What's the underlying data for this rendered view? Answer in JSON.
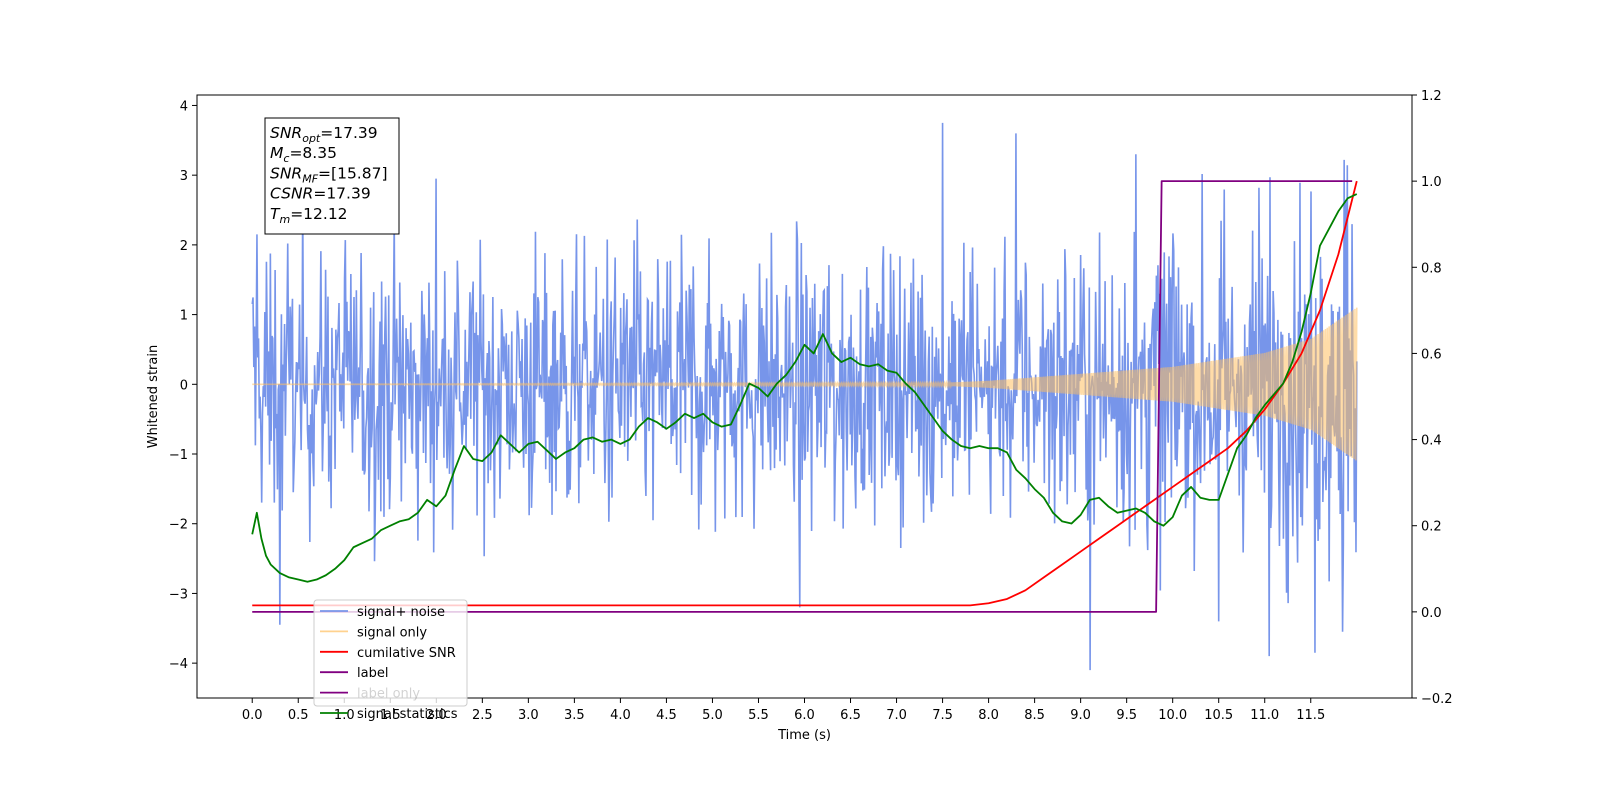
{
  "chart_data": {
    "type": "line",
    "xlabel": "Time (s)",
    "ylabel": "Whitened strain",
    "xlim": [
      -0.6,
      12.6
    ],
    "ylim": [
      -4.5,
      4.15
    ],
    "y2lim": [
      -0.2,
      1.2
    ],
    "x_ticks": [
      "0.0",
      "0.5",
      "1.0",
      "1.5",
      "2.0",
      "2.5",
      "3.0",
      "3.5",
      "4.0",
      "4.5",
      "5.0",
      "5.5",
      "6.0",
      "6.5",
      "7.0",
      "7.5",
      "8.0",
      "8.5",
      "9.0",
      "9.5",
      "10.0",
      "10.5",
      "11.0",
      "11.5"
    ],
    "y_ticks": [
      "4",
      "3",
      "2",
      "1",
      "0",
      "−1",
      "−2",
      "−3",
      "−4"
    ],
    "y2_ticks": [
      "1.2",
      "1.0",
      "0.8",
      "0.6",
      "0.4",
      "0.2",
      "0.0",
      "−0.2"
    ],
    "grid": false,
    "legend_position": "lower-left",
    "annotation": {
      "lines": [
        {
          "sym": "SNR",
          "sub": "opt",
          "val": "=17.39"
        },
        {
          "sym": "M",
          "sub": "c",
          "val": "=8.35"
        },
        {
          "sym": "SNR",
          "sub": "MF",
          "val": "=[15.87]"
        },
        {
          "sym": "CSNR",
          "sub": "",
          "val": "=17.39"
        },
        {
          "sym": "T",
          "sub": "m",
          "val": "=12.12"
        }
      ]
    },
    "series": [
      {
        "name": "signal+ noise",
        "color": "#6b8ce8",
        "axis": "left",
        "kind": "noise",
        "x_range": [
          0.0,
          12.0
        ],
        "envelope": [
          [
            0.0,
            1.55
          ],
          [
            8.0,
            1.55
          ],
          [
            12.0,
            1.85
          ]
        ],
        "peaks": [
          [
            0.05,
            2.15
          ],
          [
            0.3,
            -3.45
          ],
          [
            2.0,
            2.95
          ],
          [
            5.95,
            -3.2
          ],
          [
            7.5,
            3.75
          ],
          [
            8.3,
            3.6
          ],
          [
            9.1,
            -4.1
          ],
          [
            9.6,
            3.3
          ],
          [
            10.5,
            -3.4
          ],
          [
            11.05,
            -3.9
          ],
          [
            11.55,
            -3.85
          ],
          [
            11.85,
            -3.55
          ]
        ],
        "sample_count": 1400
      },
      {
        "name": "signal only",
        "color": "#ffbf60",
        "axis": "left",
        "kind": "chirp",
        "x_range": [
          0.0,
          12.0
        ],
        "amplitude": [
          [
            0.0,
            0.0
          ],
          [
            7.5,
            0.02
          ],
          [
            8.0,
            0.05
          ],
          [
            9.0,
            0.15
          ],
          [
            10.0,
            0.25
          ],
          [
            11.0,
            0.45
          ],
          [
            11.5,
            0.65
          ],
          [
            12.0,
            1.1
          ]
        ]
      },
      {
        "name": "cumilative SNR",
        "color": "#ff0000",
        "axis": "right",
        "x": [
          0.0,
          7.8,
          8.0,
          8.2,
          8.4,
          8.6,
          8.8,
          9.0,
          9.2,
          9.4,
          9.6,
          9.8,
          10.0,
          10.2,
          10.4,
          10.6,
          10.8,
          11.0,
          11.2,
          11.4,
          11.6,
          11.8,
          12.0
        ],
        "values": [
          0.015,
          0.015,
          0.02,
          0.03,
          0.05,
          0.08,
          0.11,
          0.14,
          0.17,
          0.2,
          0.23,
          0.26,
          0.29,
          0.32,
          0.35,
          0.38,
          0.42,
          0.47,
          0.53,
          0.6,
          0.7,
          0.83,
          1.0
        ]
      },
      {
        "name": "label",
        "color": "#800080",
        "axis": "right",
        "x": [
          0.0,
          9.82,
          9.88,
          11.95
        ],
        "values": [
          0.0,
          0.0,
          1.0,
          1.0
        ]
      },
      {
        "name": "label only",
        "color": "#800080",
        "axis": "right",
        "legend_only": true,
        "legend_faded": true
      },
      {
        "name": "signal statistics",
        "color": "#008000",
        "axis": "right",
        "x": [
          0.0,
          0.05,
          0.1,
          0.15,
          0.2,
          0.3,
          0.4,
          0.5,
          0.6,
          0.7,
          0.8,
          0.9,
          1.0,
          1.1,
          1.2,
          1.3,
          1.4,
          1.5,
          1.6,
          1.7,
          1.8,
          1.9,
          2.0,
          2.1,
          2.2,
          2.3,
          2.4,
          2.5,
          2.6,
          2.7,
          2.8,
          2.9,
          3.0,
          3.1,
          3.2,
          3.3,
          3.4,
          3.5,
          3.6,
          3.7,
          3.8,
          3.9,
          4.0,
          4.1,
          4.2,
          4.3,
          4.4,
          4.5,
          4.6,
          4.7,
          4.8,
          4.9,
          5.0,
          5.1,
          5.2,
          5.3,
          5.4,
          5.5,
          5.6,
          5.7,
          5.8,
          5.9,
          6.0,
          6.1,
          6.2,
          6.3,
          6.4,
          6.5,
          6.6,
          6.7,
          6.8,
          6.9,
          7.0,
          7.1,
          7.2,
          7.3,
          7.4,
          7.5,
          7.6,
          7.7,
          7.8,
          7.9,
          8.0,
          8.1,
          8.2,
          8.3,
          8.4,
          8.5,
          8.6,
          8.7,
          8.8,
          8.9,
          9.0,
          9.1,
          9.2,
          9.3,
          9.4,
          9.5,
          9.6,
          9.7,
          9.8,
          9.9,
          10.0,
          10.1,
          10.2,
          10.3,
          10.4,
          10.5,
          10.6,
          10.7,
          10.8,
          10.9,
          11.0,
          11.1,
          11.2,
          11.3,
          11.4,
          11.5,
          11.6,
          11.7,
          11.8,
          11.9,
          12.0
        ],
        "values": [
          0.18,
          0.23,
          0.17,
          0.13,
          0.11,
          0.09,
          0.08,
          0.075,
          0.07,
          0.075,
          0.085,
          0.1,
          0.12,
          0.15,
          0.16,
          0.17,
          0.19,
          0.2,
          0.21,
          0.215,
          0.23,
          0.26,
          0.245,
          0.27,
          0.33,
          0.385,
          0.355,
          0.35,
          0.37,
          0.41,
          0.39,
          0.37,
          0.39,
          0.395,
          0.375,
          0.355,
          0.37,
          0.38,
          0.4,
          0.405,
          0.395,
          0.4,
          0.39,
          0.4,
          0.43,
          0.45,
          0.44,
          0.425,
          0.44,
          0.46,
          0.45,
          0.46,
          0.44,
          0.43,
          0.435,
          0.48,
          0.53,
          0.52,
          0.5,
          0.53,
          0.55,
          0.58,
          0.62,
          0.6,
          0.645,
          0.6,
          0.58,
          0.59,
          0.575,
          0.57,
          0.575,
          0.56,
          0.555,
          0.53,
          0.51,
          0.48,
          0.45,
          0.42,
          0.4,
          0.385,
          0.38,
          0.385,
          0.38,
          0.38,
          0.37,
          0.33,
          0.31,
          0.285,
          0.265,
          0.23,
          0.21,
          0.205,
          0.225,
          0.26,
          0.265,
          0.245,
          0.23,
          0.235,
          0.24,
          0.23,
          0.21,
          0.2,
          0.22,
          0.27,
          0.29,
          0.265,
          0.26,
          0.26,
          0.32,
          0.38,
          0.41,
          0.45,
          0.48,
          0.505,
          0.53,
          0.58,
          0.65,
          0.74,
          0.85,
          0.89,
          0.93,
          0.96,
          0.97
        ]
      }
    ]
  }
}
